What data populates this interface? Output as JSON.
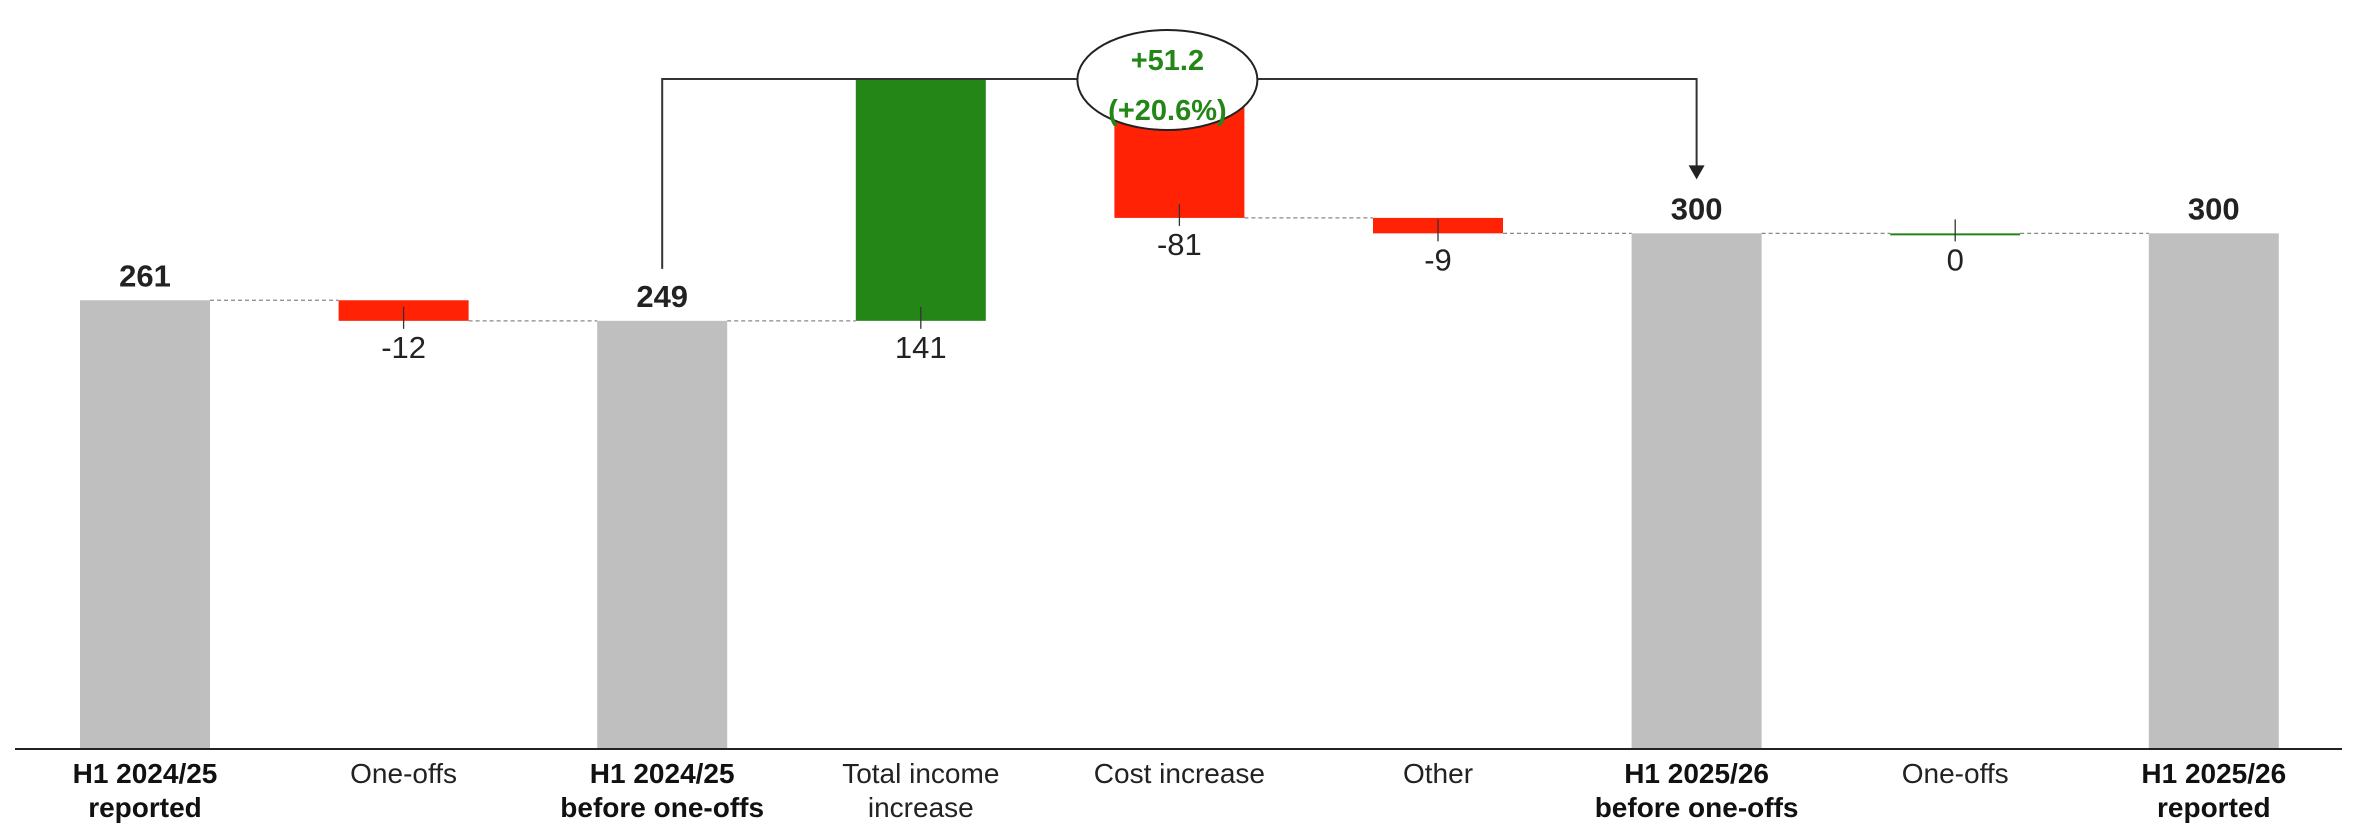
{
  "chart_data": {
    "type": "waterfall",
    "title": "",
    "categories": [
      [
        "H1 2024/25",
        "reported"
      ],
      [
        "One-offs"
      ],
      [
        "H1 2024/25",
        "before one-offs"
      ],
      [
        "Total income",
        "increase"
      ],
      [
        "Cost increase"
      ],
      [
        "Other"
      ],
      [
        "H1 2025/26",
        "before one-offs"
      ],
      [
        "One-offs"
      ],
      [
        "H1 2025/26",
        "reported"
      ]
    ],
    "kinds": [
      "total",
      "delta",
      "total",
      "delta",
      "delta",
      "delta",
      "total",
      "delta",
      "total"
    ],
    "values": [
      261,
      -12,
      249,
      141,
      -81,
      -9,
      300,
      0,
      300
    ],
    "value_labels": [
      "261",
      "-12",
      "249",
      "141",
      "-81",
      "-9",
      "300",
      "0",
      "300"
    ],
    "ylim": [
      0,
      320
    ],
    "connector": {
      "from_category": 2,
      "to_category": 6,
      "label_line1": "+51.2",
      "label_line2": "(+20.6%)"
    },
    "colors": {
      "total": "#bfbfbf",
      "increase": "#248617",
      "decrease": "#ff2205",
      "axis": "#222222",
      "connector": "#888888",
      "bubble_text": "#248617"
    }
  }
}
